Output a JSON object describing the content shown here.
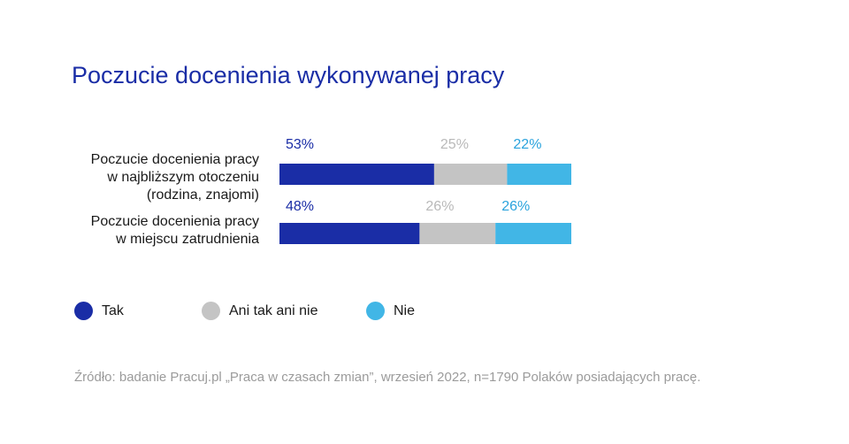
{
  "title": "Poczucie docenienia wykonywanej pracy",
  "chart_data": {
    "type": "bar",
    "orientation": "horizontal",
    "stacked": true,
    "percent_stacked": true,
    "categories": [
      [
        "Poczucie docenienia pracy",
        "w najbliższym otoczeniu",
        "(rodzina, znajomi)"
      ],
      [
        "Poczucie docenienia pracy",
        "w miejscu zatrudnienia"
      ]
    ],
    "series": [
      {
        "name": "Tak",
        "values": [
          53,
          48
        ],
        "labels": [
          "53%",
          "48%"
        ],
        "color": "#1a2da6"
      },
      {
        "name": "Ani tak ani nie",
        "values": [
          25,
          26
        ],
        "labels": [
          "25%",
          "26%"
        ],
        "color": "#c4c4c4"
      },
      {
        "name": "Nie",
        "values": [
          22,
          26
        ],
        "labels": [
          "22%",
          "26%"
        ],
        "color": "#41b6e6"
      }
    ],
    "label_colors": [
      "#1a2da6",
      "#b9b9b9",
      "#2aa3dd"
    ],
    "legend_placement": "bottom-left",
    "grid": false
  },
  "legend": [
    {
      "label": "Tak",
      "color": "#1a2da6"
    },
    {
      "label": "Ani tak ani nie",
      "color": "#c4c4c4"
    },
    {
      "label": "Nie",
      "color": "#41b6e6"
    }
  ],
  "source": "Źródło: badanie Pracuj.pl „Praca w czasach zmian”, wrzesień 2022, n=1790 Polaków posiadających pracę."
}
